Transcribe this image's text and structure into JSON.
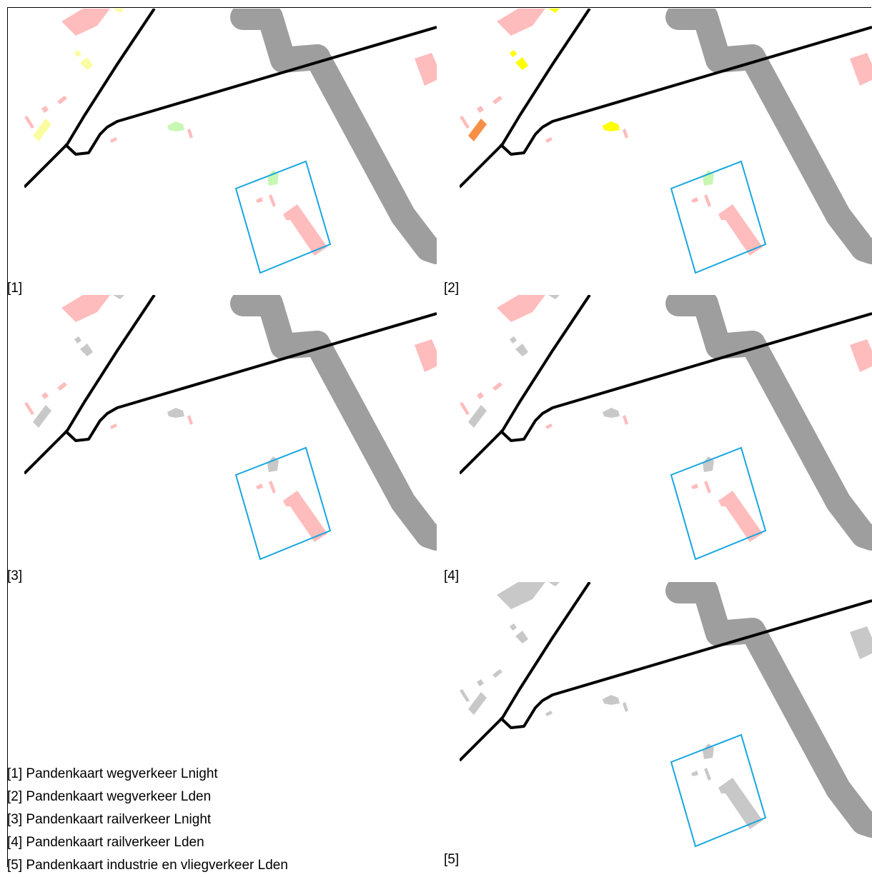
{
  "panels": [
    {
      "id": "1",
      "tag": "[1]",
      "theme": "road_lnight"
    },
    {
      "id": "2",
      "tag": "[2]",
      "theme": "road_lden"
    },
    {
      "id": "3",
      "tag": "[3]",
      "theme": "rail_lnight"
    },
    {
      "id": "4",
      "tag": "[4]",
      "theme": "rail_lden"
    },
    {
      "id": "5",
      "tag": "[5]",
      "theme": "industry_lden"
    }
  ],
  "legend": [
    "[1] Pandenkaart wegverkeer Lnight",
    "[2] Pandenkaart wegverkeer Lden",
    "[3] Pandenkaart railverkeer Lnight",
    "[4] Pandenkaart railverkeer Lden",
    "[5] Pandenkaart industrie en vliegverkeer Lden"
  ],
  "colors": {
    "road_major": "#9e9e9e",
    "road_minor": "#000000",
    "selection_outline": "#17a6e0",
    "building_pink": "#ffbcbc",
    "building_yellow_light": "#fafca0",
    "building_green_light": "#c8f7b4",
    "building_yellow": "#ffff00",
    "building_orange": "#f59046",
    "building_grey": "#c8c8c8"
  },
  "themes": {
    "road_lnight": {
      "big": "building_pink",
      "topright": "building_yellow_light",
      "small": "building_yellow_light",
      "long": "building_yellow_light",
      "mid": "building_green_light",
      "box": "building_green_light",
      "other": "building_pink"
    },
    "road_lden": {
      "big": "building_pink",
      "topright": "building_yellow",
      "small": "building_yellow",
      "long": "building_orange",
      "mid": "building_yellow",
      "box": "building_green_light",
      "other": "building_pink"
    },
    "rail_lnight": {
      "big": "building_pink",
      "topright": "building_grey",
      "small": "building_grey",
      "long": "building_grey",
      "mid": "building_grey",
      "box": "building_grey",
      "other": "building_pink"
    },
    "rail_lden": {
      "big": "building_pink",
      "topright": "building_grey",
      "small": "building_grey",
      "long": "building_grey",
      "mid": "building_grey",
      "box": "building_grey",
      "other": "building_pink"
    },
    "industry_lden": {
      "big": "building_grey",
      "topright": "building_grey",
      "small": "building_grey",
      "long": "building_grey",
      "mid": "building_grey",
      "box": "building_grey",
      "other": "building_grey"
    }
  }
}
